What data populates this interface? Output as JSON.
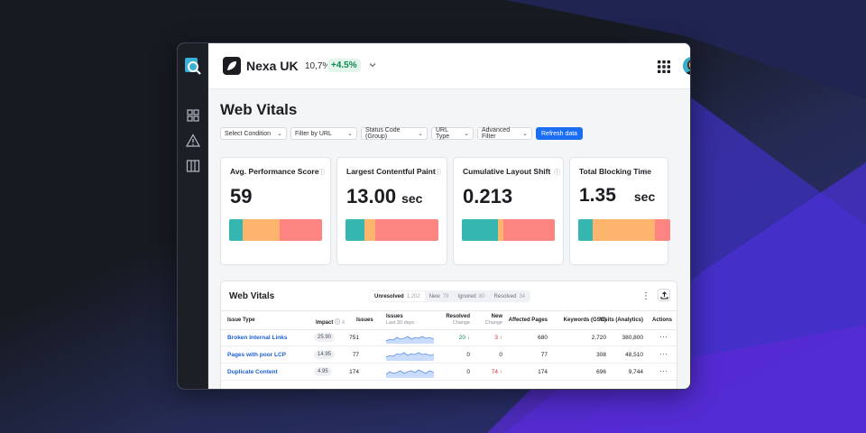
{
  "topbar": {
    "brand_name": "Nexa UK",
    "metric_value": "10,7%",
    "metric_delta": "+4.5%"
  },
  "page": {
    "title": "Web Vitals"
  },
  "filters": [
    {
      "label": "Select Condition"
    },
    {
      "label": "Filter by URL"
    },
    {
      "label": "Status Code (Group)"
    },
    {
      "label": "URL Type"
    },
    {
      "label": "Advanced Filter"
    }
  ],
  "refresh_label": "Refresh data",
  "cards": [
    {
      "title": "Avg. Performance Score",
      "value": "59",
      "unit": "",
      "segments": [
        0.15,
        0.39,
        0.46
      ]
    },
    {
      "title": "Largest Contentful Paint",
      "value": "13.00",
      "unit": "sec",
      "segments": [
        0.2,
        0.12,
        0.68
      ]
    },
    {
      "title": "Cumulative Layout Shift",
      "value": "0.213",
      "unit": "",
      "segments": [
        0.39,
        0.06,
        0.55
      ]
    },
    {
      "title": "Total Blocking Time",
      "value": "1.35",
      "unit": "sec",
      "segments": [
        0.16,
        0.67,
        0.17
      ]
    }
  ],
  "table": {
    "title": "Web Vitals",
    "tabs": [
      {
        "label": "Unresolved",
        "count": "1,202"
      },
      {
        "label": "New",
        "count": "79"
      },
      {
        "label": "Ignored",
        "count": "80"
      },
      {
        "label": "Resolved",
        "count": "34"
      }
    ],
    "headers": {
      "issue_type": "Issue Type",
      "impact": "Impact",
      "issues": "Issues",
      "issues_trend": "Issues",
      "issues_trend_sub": "Last 30 days",
      "resolved": "Resolved",
      "resolved_sub": "Change",
      "new": "New",
      "new_sub": "Change",
      "affected_pages": "Affected Pages",
      "keywords": "Keywords (GSC)",
      "visits": "Visits (Analytics)",
      "actions": "Actions"
    },
    "rows": [
      {
        "issue": "Broken Internal Links",
        "impact": "25.90",
        "issues": "751",
        "resolved": "20",
        "new": "3",
        "affected": "680",
        "keywords": "2,720",
        "visits": "380,800"
      },
      {
        "issue": "Pages with poor LCP",
        "impact": "14.95",
        "issues": "77",
        "resolved": "0",
        "new": "0",
        "affected": "77",
        "keywords": "308",
        "visits": "48,510"
      },
      {
        "issue": "Duplicate Content",
        "impact": "4.95",
        "issues": "174",
        "resolved": "0",
        "new": "74",
        "affected": "174",
        "keywords": "696",
        "visits": "9,744"
      }
    ],
    "actions_glyph": "···"
  },
  "colors": {
    "good": "#36b6b1",
    "mid": "#fdb46c",
    "bad": "#fc8582",
    "accent": "#1b6ef3"
  }
}
